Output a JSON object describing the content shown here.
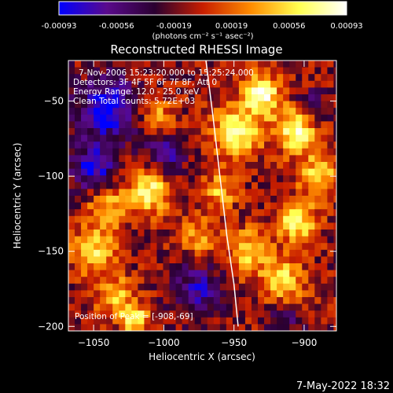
{
  "chart_data": {
    "type": "heatmap",
    "title": "Reconstructed RHESSI Image",
    "colorbar": {
      "min": -0.00093,
      "max": 0.00093,
      "tick_labels": [
        "-0.00093",
        "-0.00056",
        "-0.00019",
        "0.00019",
        "0.00056",
        "0.00093"
      ],
      "unit_label": "(photons cm⁻² s⁻¹ asec⁻²)",
      "colors": [
        "#0000ff",
        "#5a0a8c",
        "#2a0030",
        "#c81e00",
        "#ff8c00",
        "#ffff50",
        "#ffffff"
      ]
    },
    "xlabel": "Heliocentric X (arcsec)",
    "ylabel": "Heliocentric Y (arcsec)",
    "xlim": [
      -1068,
      -877
    ],
    "ylim": [
      -203,
      -23
    ],
    "x_ticks": [
      -1050,
      -1000,
      -950,
      -900
    ],
    "y_ticks": [
      -50,
      -100,
      -150,
      -200
    ],
    "x_tick_labels": [
      "−1050",
      "−1000",
      "−950",
      "−900"
    ],
    "y_tick_labels": [
      "−50",
      "−100",
      "−150",
      "−200"
    ],
    "limb_curve": [
      [
        -970,
        -23
      ],
      [
        -965,
        -60
      ],
      [
        -960,
        -100
      ],
      [
        -955,
        -140
      ],
      [
        -950,
        -172
      ],
      [
        -947,
        -200
      ]
    ],
    "hot_spots": [
      {
        "x": -948,
        "y": -70,
        "r": 18,
        "v": 0.0008
      },
      {
        "x": -930,
        "y": -45,
        "r": 14,
        "v": 0.0009
      },
      {
        "x": -905,
        "y": -69,
        "r": 16,
        "v": 0.00093
      },
      {
        "x": -890,
        "y": -100,
        "r": 14,
        "v": 0.0007
      },
      {
        "x": -1010,
        "y": -110,
        "r": 16,
        "v": 0.0008
      },
      {
        "x": -1040,
        "y": -120,
        "r": 14,
        "v": 0.0006
      },
      {
        "x": -1005,
        "y": -60,
        "r": 13,
        "v": 0.0005
      },
      {
        "x": -1050,
        "y": -150,
        "r": 16,
        "v": 0.0007
      },
      {
        "x": -1035,
        "y": -180,
        "r": 14,
        "v": 0.0006
      },
      {
        "x": -1020,
        "y": -195,
        "r": 10,
        "v": 0.0008
      },
      {
        "x": -940,
        "y": -150,
        "r": 16,
        "v": 0.0006
      },
      {
        "x": -915,
        "y": -170,
        "r": 16,
        "v": 0.0007
      },
      {
        "x": -905,
        "y": -130,
        "r": 14,
        "v": 0.0008
      },
      {
        "x": -975,
        "y": -140,
        "r": 14,
        "v": 0.0005
      },
      {
        "x": -960,
        "y": -110,
        "r": 12,
        "v": 0.0006
      }
    ],
    "cold_spots": [
      {
        "x": -1040,
        "y": -55,
        "r": 22,
        "v": -0.0008
      },
      {
        "x": -1050,
        "y": -95,
        "r": 16,
        "v": -0.0007
      },
      {
        "x": -1000,
        "y": -85,
        "r": 14,
        "v": -0.0006
      },
      {
        "x": -975,
        "y": -175,
        "r": 18,
        "v": -0.0006
      },
      {
        "x": -895,
        "y": -55,
        "r": 12,
        "v": -0.0005
      },
      {
        "x": -915,
        "y": -195,
        "r": 14,
        "v": -0.0004
      }
    ]
  },
  "annotations": {
    "time_range": "7-Nov-2006 15:23:20.000 to 15:25:24.000",
    "detectors": "Detectors: 3F 4F 5F 6F 7F 8F, Att 0",
    "energy": "Energy Range: 12.0 - 25.0 keV",
    "clean": "Clean    Total counts: 5.72E+03",
    "peak": "Position of Peak = [-908,-69]"
  },
  "footer_timestamp": "7-May-2022 18:32"
}
